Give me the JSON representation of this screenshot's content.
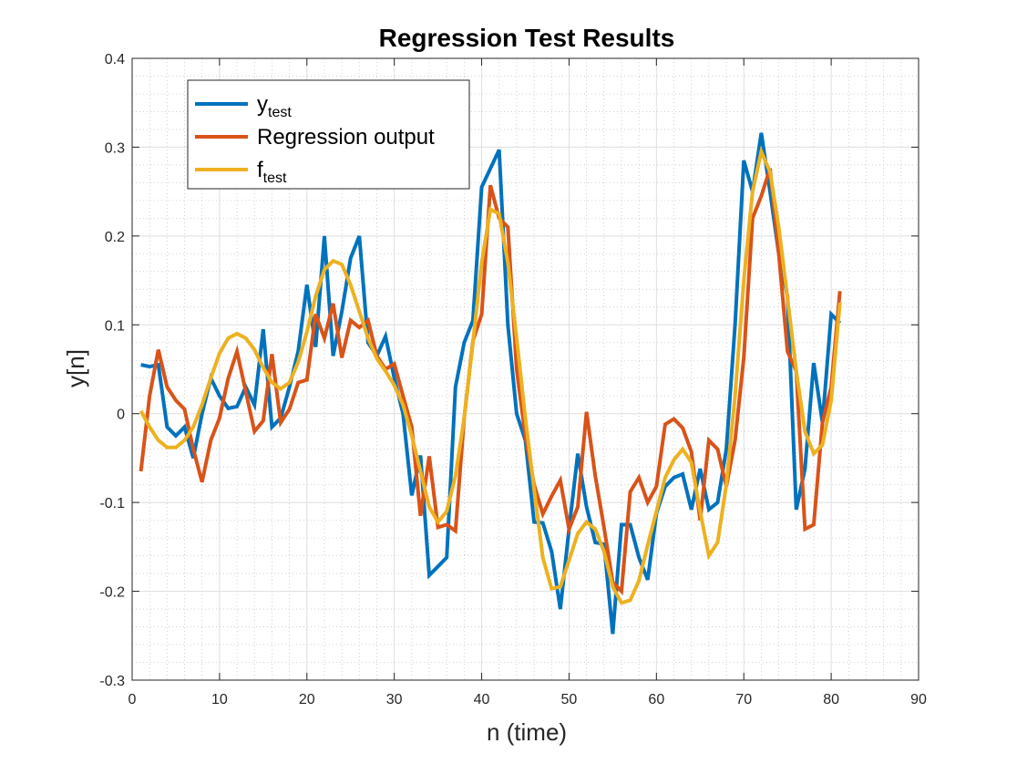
{
  "chart_data": {
    "type": "line",
    "title": "Regression Test Results",
    "xlabel": "n (time)",
    "ylabel": "y[n]",
    "xlim": [
      0,
      90
    ],
    "ylim": [
      -0.3,
      0.4
    ],
    "grid": true,
    "minor_grid": true,
    "xticks": [
      0,
      10,
      20,
      30,
      40,
      50,
      60,
      70,
      80,
      90
    ],
    "xtick_labels": [
      "0",
      "10",
      "20",
      "30",
      "40",
      "50",
      "60",
      "70",
      "80",
      "90"
    ],
    "yticks": [
      -0.3,
      -0.2,
      -0.1,
      0,
      0.1,
      0.2,
      0.3,
      0.4
    ],
    "ytick_labels": [
      "-0.3",
      "-0.2",
      "-0.1",
      "0",
      "0.1",
      "0.2",
      "0.3",
      "0.4"
    ],
    "legend_position": "top-left",
    "x": [
      1,
      2,
      3,
      4,
      5,
      6,
      7,
      8,
      9,
      10,
      11,
      12,
      13,
      14,
      15,
      16,
      17,
      18,
      19,
      20,
      21,
      22,
      23,
      24,
      25,
      26,
      27,
      28,
      29,
      30,
      31,
      32,
      33,
      34,
      35,
      36,
      37,
      38,
      39,
      40,
      41,
      42,
      43,
      44,
      45,
      46,
      47,
      48,
      49,
      50,
      51,
      52,
      53,
      54,
      55,
      56,
      57,
      58,
      59,
      60,
      61,
      62,
      63,
      64,
      65,
      66,
      67,
      68,
      69,
      70,
      71,
      72,
      73,
      74,
      75,
      76,
      77,
      78,
      79,
      80,
      81
    ],
    "series": [
      {
        "name": "y_test",
        "legend_main": "y",
        "legend_sub": "test",
        "color": "#0072BD",
        "values": [
          0.055,
          0.053,
          0.055,
          -0.015,
          -0.025,
          -0.015,
          -0.05,
          0.0,
          0.04,
          0.02,
          0.006,
          0.008,
          0.03,
          0.01,
          0.095,
          -0.015,
          -0.005,
          0.03,
          0.07,
          0.145,
          0.075,
          0.2,
          0.065,
          0.115,
          0.175,
          0.2,
          0.08,
          0.065,
          0.087,
          0.04,
          0.0,
          -0.092,
          -0.047,
          -0.182,
          -0.172,
          -0.162,
          0.03,
          0.08,
          0.105,
          0.255,
          0.276,
          0.297,
          0.1,
          0.0,
          -0.03,
          -0.122,
          -0.123,
          -0.155,
          -0.22,
          -0.13,
          -0.045,
          -0.105,
          -0.145,
          -0.147,
          -0.248,
          -0.125,
          -0.125,
          -0.162,
          -0.187,
          -0.112,
          -0.082,
          -0.072,
          -0.068,
          -0.108,
          -0.062,
          -0.108,
          -0.1,
          -0.04,
          0.1,
          0.285,
          0.25,
          0.316,
          0.25,
          0.18,
          0.132,
          -0.108,
          -0.062,
          0.057,
          -0.01,
          0.112,
          0.102
        ]
      },
      {
        "name": "Regression output",
        "legend_main": "Regression output",
        "legend_sub": "",
        "color": "#D95319",
        "values": [
          -0.065,
          0.02,
          0.072,
          0.03,
          0.015,
          0.005,
          -0.04,
          -0.077,
          -0.03,
          -0.005,
          0.04,
          0.07,
          0.025,
          -0.02,
          -0.008,
          0.067,
          -0.01,
          0.005,
          0.035,
          0.038,
          0.112,
          0.085,
          0.124,
          0.063,
          0.105,
          0.097,
          0.105,
          0.065,
          0.05,
          0.056,
          0.02,
          -0.015,
          -0.115,
          -0.048,
          -0.128,
          -0.125,
          -0.132,
          -0.005,
          0.082,
          0.112,
          0.257,
          0.22,
          0.21,
          0.05,
          -0.025,
          -0.08,
          -0.113,
          -0.093,
          -0.075,
          -0.13,
          -0.105,
          0.002,
          -0.07,
          -0.128,
          -0.19,
          -0.2,
          -0.088,
          -0.072,
          -0.1,
          -0.082,
          -0.012,
          -0.006,
          -0.016,
          -0.043,
          -0.12,
          -0.03,
          -0.04,
          -0.082,
          -0.03,
          0.063,
          0.22,
          0.245,
          0.276,
          0.18,
          0.07,
          0.048,
          -0.13,
          -0.125,
          -0.01,
          0.03,
          0.138
        ]
      },
      {
        "name": "f_test",
        "legend_main": "f",
        "legend_sub": "test",
        "color": "#EDB120",
        "values": [
          0.003,
          -0.015,
          -0.03,
          -0.038,
          -0.038,
          -0.03,
          -0.015,
          0.01,
          0.04,
          0.068,
          0.085,
          0.09,
          0.085,
          0.072,
          0.052,
          0.035,
          0.028,
          0.035,
          0.058,
          0.092,
          0.132,
          0.162,
          0.172,
          0.168,
          0.145,
          0.115,
          0.085,
          0.062,
          0.048,
          0.032,
          0.01,
          -0.025,
          -0.065,
          -0.105,
          -0.122,
          -0.11,
          -0.07,
          -0.005,
          0.08,
          0.17,
          0.23,
          0.225,
          0.17,
          0.085,
          -0.005,
          -0.085,
          -0.162,
          -0.197,
          -0.195,
          -0.165,
          -0.135,
          -0.122,
          -0.13,
          -0.155,
          -0.195,
          -0.213,
          -0.21,
          -0.188,
          -0.148,
          -0.11,
          -0.072,
          -0.052,
          -0.04,
          -0.055,
          -0.11,
          -0.16,
          -0.145,
          -0.08,
          0.02,
          0.15,
          0.25,
          0.295,
          0.272,
          0.21,
          0.13,
          0.048,
          -0.02,
          -0.045,
          -0.035,
          0.015,
          0.125
        ]
      }
    ]
  }
}
